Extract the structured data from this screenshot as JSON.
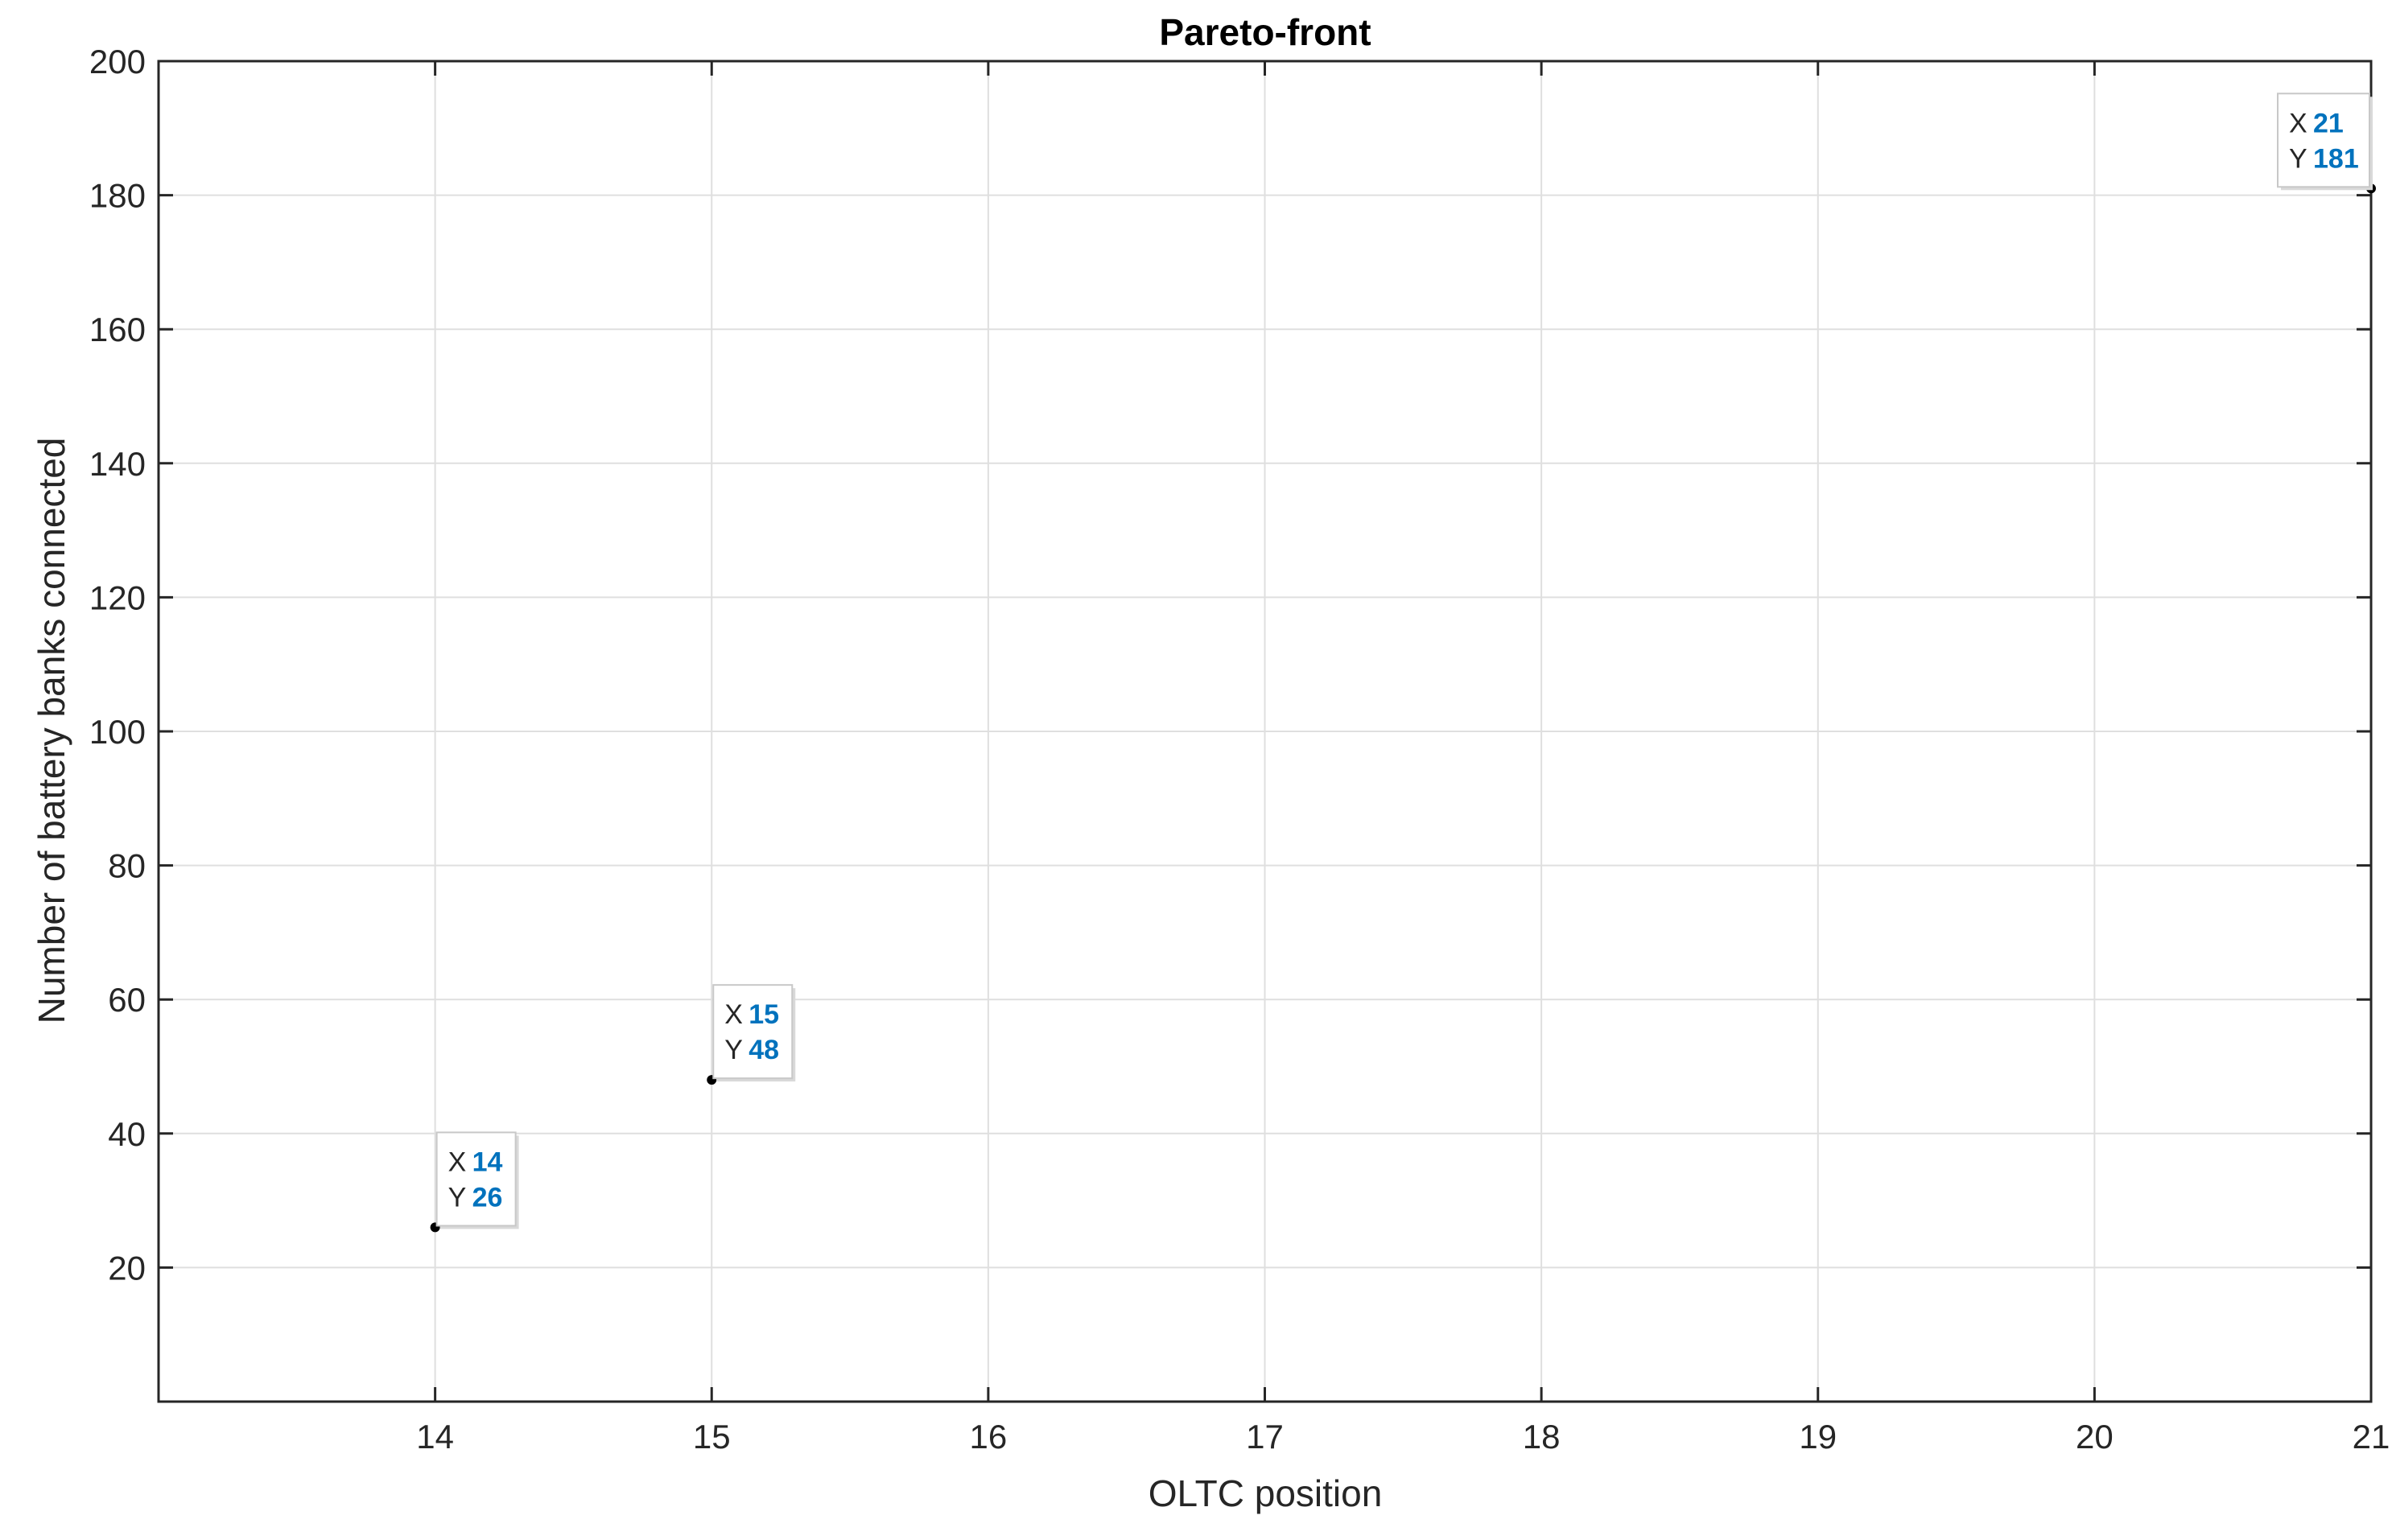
{
  "chart_data": {
    "type": "scatter",
    "title": "Pareto-front",
    "xlabel": "OLTC position",
    "ylabel": "Number of battery banks connected",
    "xlim": [
      13,
      21
    ],
    "ylim": [
      0,
      200
    ],
    "xticks": [
      14,
      15,
      16,
      17,
      18,
      19,
      20,
      21
    ],
    "yticks": [
      20,
      40,
      60,
      80,
      100,
      120,
      140,
      160,
      180,
      200
    ],
    "grid": true,
    "points": [
      {
        "x": 14,
        "y": 26
      },
      {
        "x": 15,
        "y": 48
      },
      {
        "x": 21,
        "y": 181
      }
    ],
    "datatips": [
      {
        "x_label": "X",
        "y_label": "Y",
        "x_value": "14",
        "y_value": "26"
      },
      {
        "x_label": "X",
        "y_label": "Y",
        "x_value": "15",
        "y_value": "48"
      },
      {
        "x_label": "X",
        "y_label": "Y",
        "x_value": "21",
        "y_value": "181"
      }
    ],
    "colors": {
      "axis": "#262626",
      "grid": "#dfdfdf",
      "marker": "#000000",
      "datatip_value": "#0072bd",
      "datatip_label": "#262626"
    }
  }
}
